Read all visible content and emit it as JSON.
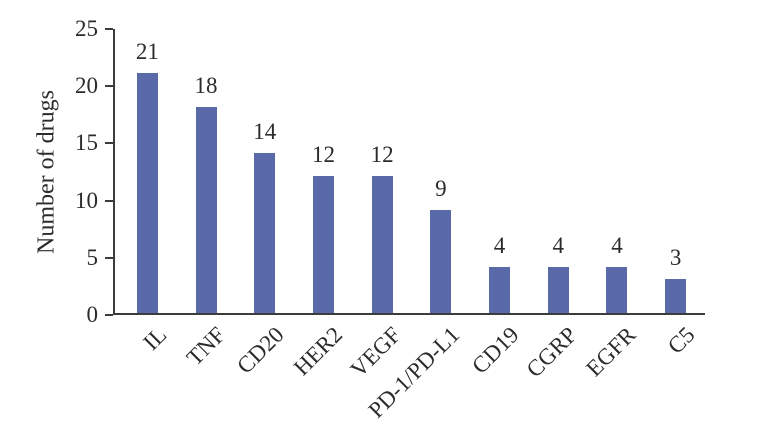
{
  "figure": {
    "background": "#ffffff"
  },
  "chart_data": {
    "type": "bar",
    "categories": [
      "IL",
      "TNF",
      "CD20",
      "HER2",
      "VEGF",
      "PD-1/PD-L1",
      "CD19",
      "CGRP",
      "EGFR",
      "C5"
    ],
    "values": [
      21,
      18,
      14,
      12,
      12,
      9,
      4,
      4,
      4,
      3
    ],
    "ylabel": "Number of drugs",
    "xlabel": "",
    "ylim": [
      0,
      25
    ],
    "yticks": [
      0,
      5,
      10,
      15,
      20,
      25
    ],
    "show_value_labels": true,
    "grid": false,
    "legend": "none",
    "x_tick_rotation_deg": 45,
    "bar_color": "#5a6aa8",
    "axis_color": "#3c3c3c",
    "text_color": "#2b2b2b"
  }
}
